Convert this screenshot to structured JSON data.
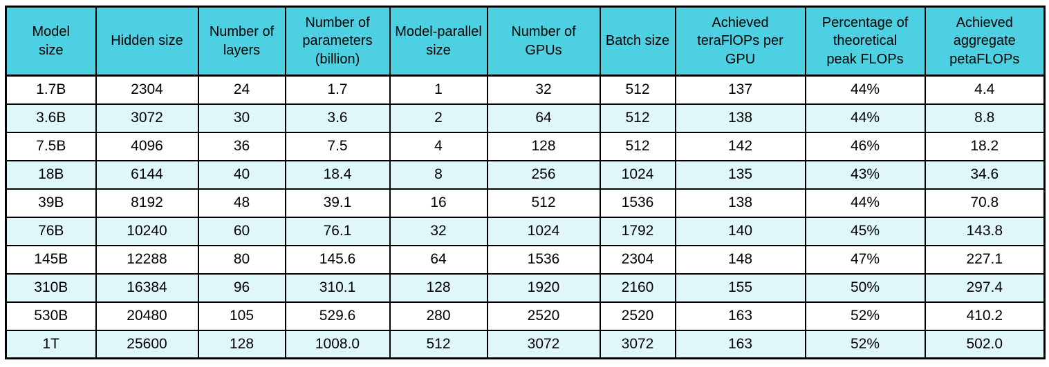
{
  "colors": {
    "header_bg": "#4DD0E1",
    "row_bg": "#FFFFFF",
    "row_alt_bg": "#E0F7FA",
    "border": "#000000",
    "text": "#000000"
  },
  "chart_data": {
    "type": "table",
    "title": "",
    "columns": [
      "Model\nsize",
      "Hidden size",
      "Number of\nlayers",
      "Number of\nparameters\n(billion)",
      "Model-parallel\nsize",
      "Number of\nGPUs",
      "Batch size",
      "Achieved\nteraFlOPs per\nGPU",
      "Percentage of\ntheoretical\npeak FLOPs",
      "Achieved\naggregate\npetaFLOPs"
    ],
    "rows": [
      [
        "1.7B",
        "2304",
        "24",
        "1.7",
        "1",
        "32",
        "512",
        "137",
        "44%",
        "4.4"
      ],
      [
        "3.6B",
        "3072",
        "30",
        "3.6",
        "2",
        "64",
        "512",
        "138",
        "44%",
        "8.8"
      ],
      [
        "7.5B",
        "4096",
        "36",
        "7.5",
        "4",
        "128",
        "512",
        "142",
        "46%",
        "18.2"
      ],
      [
        "18B",
        "6144",
        "40",
        "18.4",
        "8",
        "256",
        "1024",
        "135",
        "43%",
        "34.6"
      ],
      [
        "39B",
        "8192",
        "48",
        "39.1",
        "16",
        "512",
        "1536",
        "138",
        "44%",
        "70.8"
      ],
      [
        "76B",
        "10240",
        "60",
        "76.1",
        "32",
        "1024",
        "1792",
        "140",
        "45%",
        "143.8"
      ],
      [
        "145B",
        "12288",
        "80",
        "145.6",
        "64",
        "1536",
        "2304",
        "148",
        "47%",
        "227.1"
      ],
      [
        "310B",
        "16384",
        "96",
        "310.1",
        "128",
        "1920",
        "2160",
        "155",
        "50%",
        "297.4"
      ],
      [
        "530B",
        "20480",
        "105",
        "529.6",
        "280",
        "2520",
        "2520",
        "163",
        "52%",
        "410.2"
      ],
      [
        "1T",
        "25600",
        "128",
        "1008.0",
        "512",
        "3072",
        "3072",
        "163",
        "52%",
        "502.0"
      ]
    ]
  }
}
